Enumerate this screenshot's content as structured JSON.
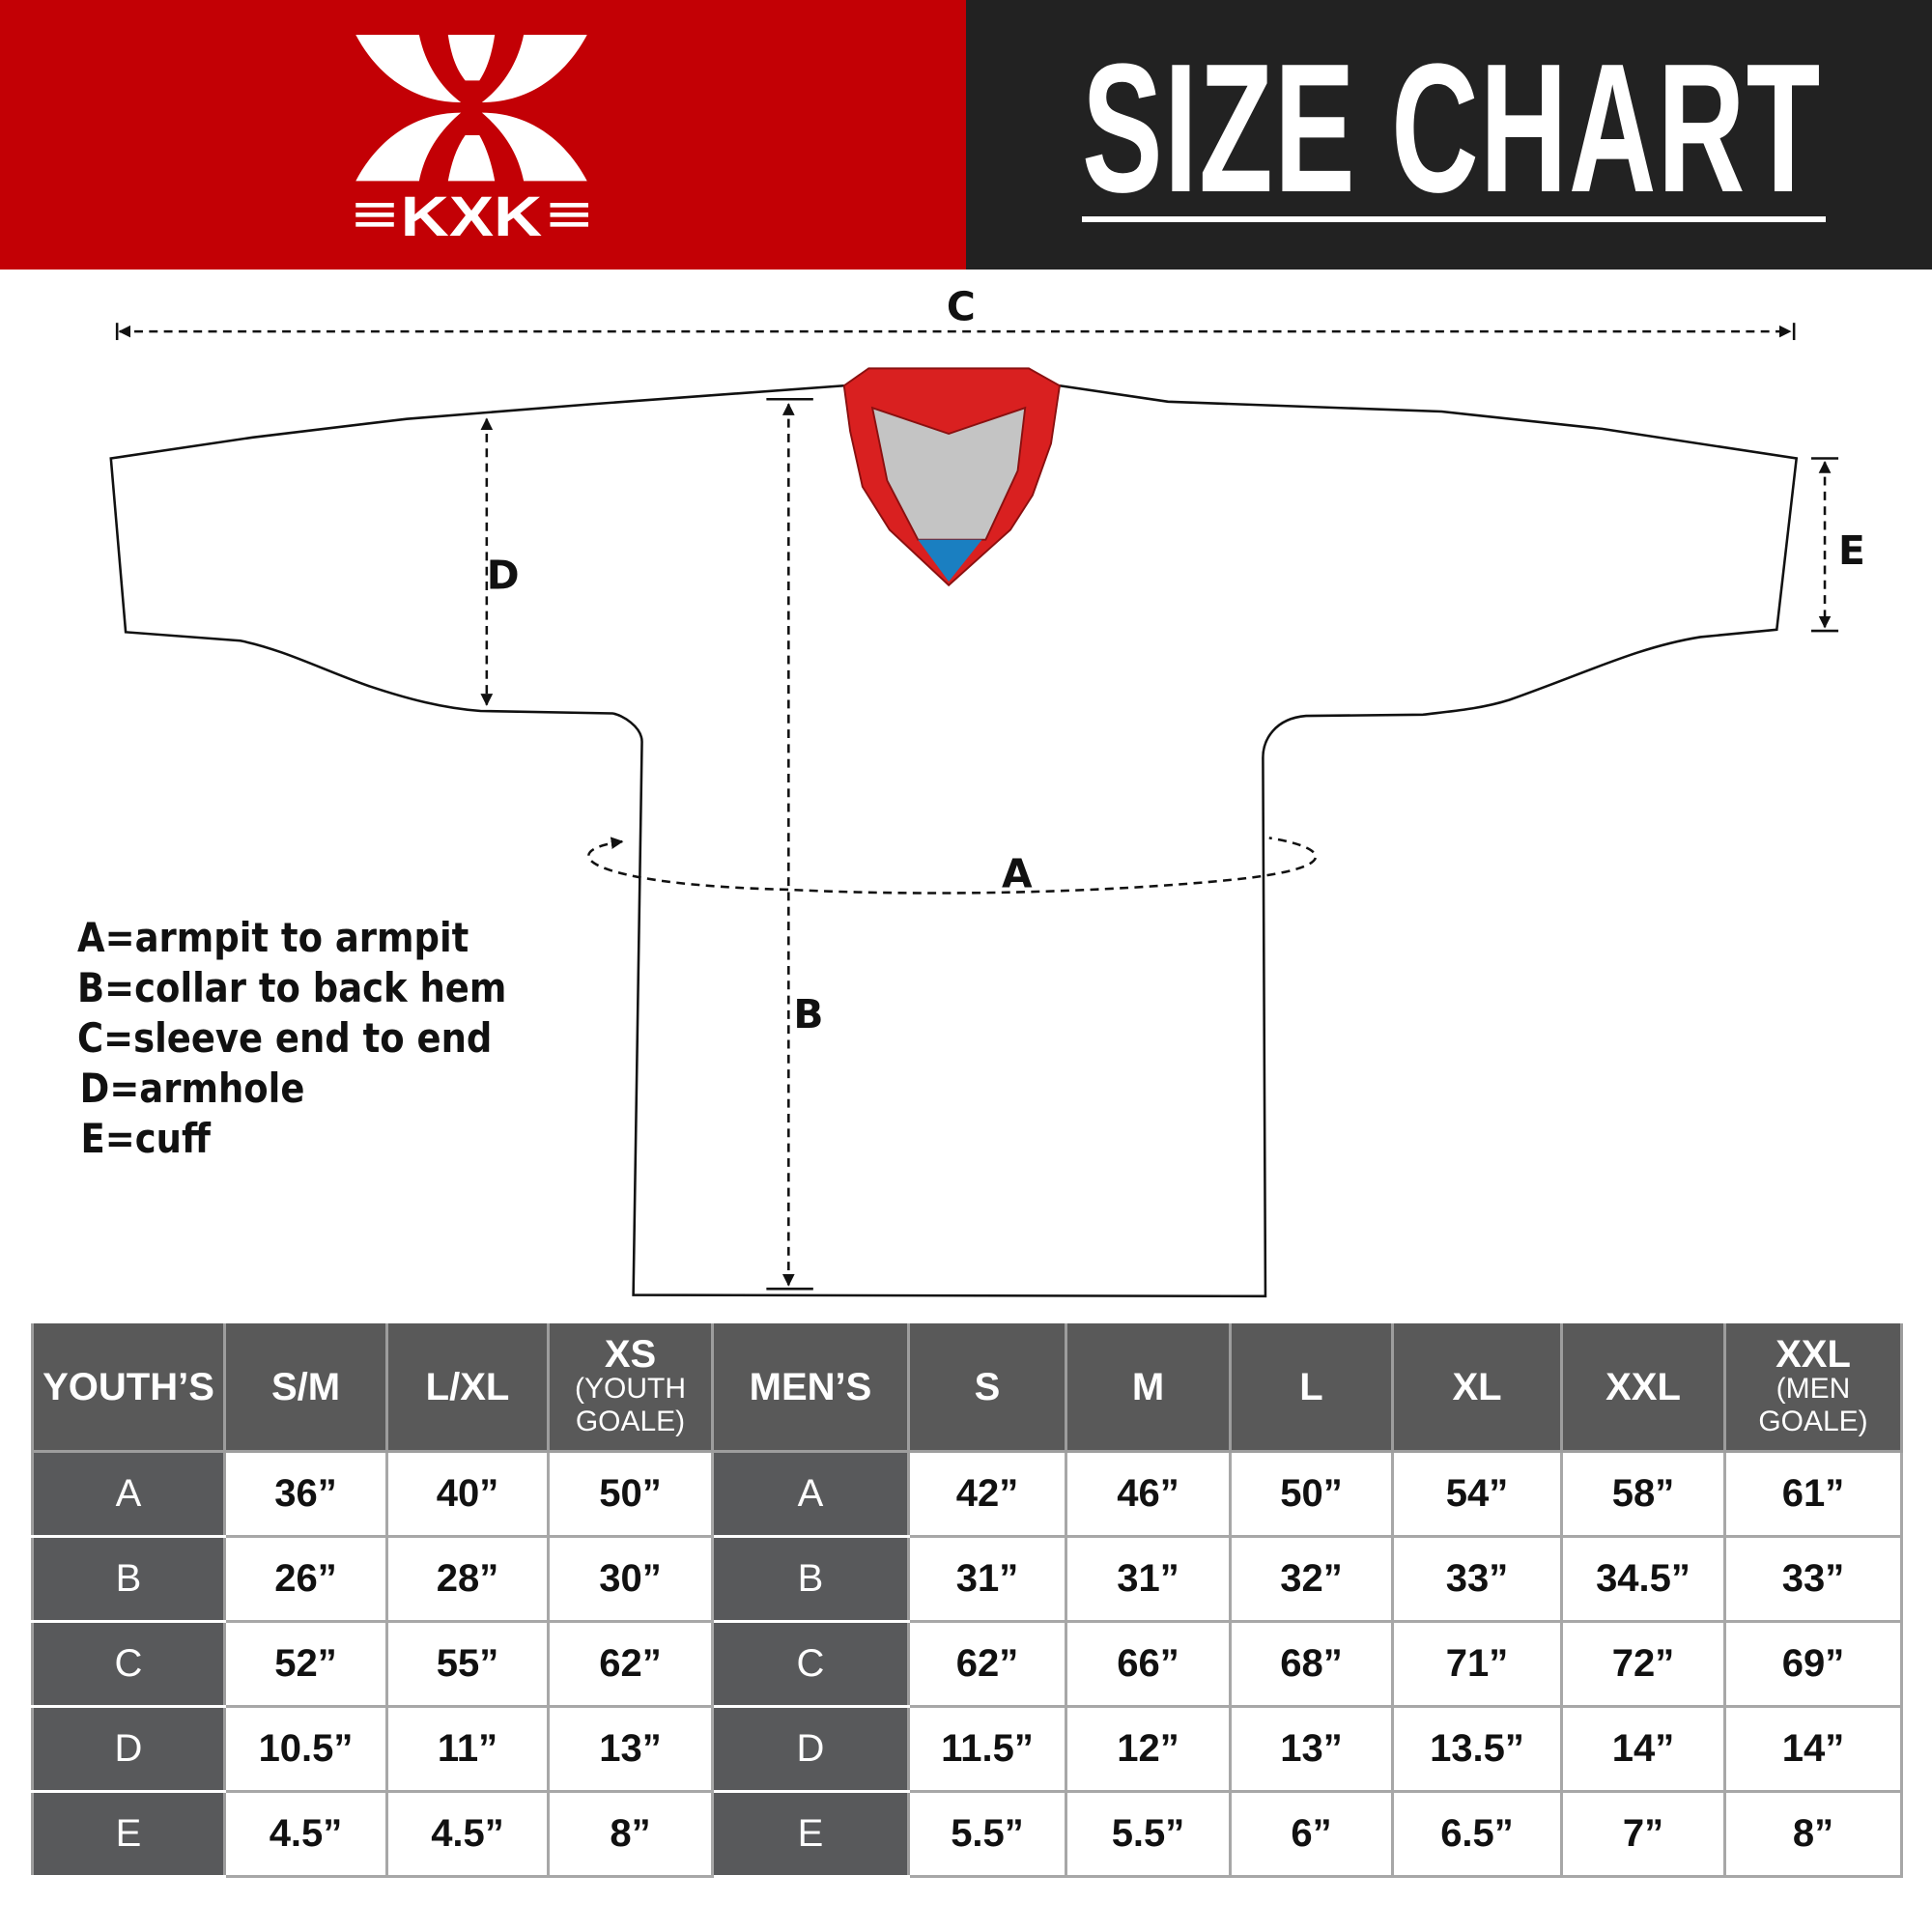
{
  "brand": {
    "logo_text": "KXK",
    "colors": {
      "red": "#c30005",
      "dark": "#222222",
      "table_header": "#595959",
      "collar_red": "#d92020",
      "collar_gray": "#c4c4c4",
      "collar_blue": "#1a7fc1"
    }
  },
  "header": {
    "title": "SIZE CHART"
  },
  "diagram": {
    "labels": {
      "a": "A",
      "b": "B",
      "c": "C",
      "d": "D",
      "e": "E"
    },
    "legend": [
      "A=armpit to armpit",
      "B=collar to back hem",
      "C=sleeve end to end",
      "D=armhole",
      "E=cuff"
    ]
  },
  "table": {
    "columns": [
      {
        "label": "YOUTH’S"
      },
      {
        "label": "S/M"
      },
      {
        "label": "L/XL"
      },
      {
        "label": "XS",
        "sub": "(YOUTH GOALE)"
      },
      {
        "label": "MEN’S"
      },
      {
        "label": "S"
      },
      {
        "label": "M"
      },
      {
        "label": "L"
      },
      {
        "label": "XL"
      },
      {
        "label": "XXL"
      },
      {
        "label": "XXL",
        "sub": "(MEN GOALE)"
      }
    ],
    "rows": [
      {
        "youth_label": "A",
        "youth": [
          "36”",
          "40”",
          "50”"
        ],
        "men_label": "A",
        "men": [
          "42”",
          "46”",
          "50”",
          "54”",
          "58”",
          "61”"
        ]
      },
      {
        "youth_label": "B",
        "youth": [
          "26”",
          "28”",
          "30”"
        ],
        "men_label": "B",
        "men": [
          "31”",
          "31”",
          "32”",
          "33”",
          "34.5”",
          "33”"
        ]
      },
      {
        "youth_label": "C",
        "youth": [
          "52”",
          "55”",
          "62”"
        ],
        "men_label": "C",
        "men": [
          "62”",
          "66”",
          "68”",
          "71”",
          "72”",
          "69”"
        ]
      },
      {
        "youth_label": "D",
        "youth": [
          "10.5”",
          "11”",
          "13”"
        ],
        "men_label": "D",
        "men": [
          "11.5”",
          "12”",
          "13”",
          "13.5”",
          "14”",
          "14”"
        ]
      },
      {
        "youth_label": "E",
        "youth": [
          "4.5”",
          "4.5”",
          "8”"
        ],
        "men_label": "E",
        "men": [
          "5.5”",
          "5.5”",
          "6”",
          "6.5”",
          "7”",
          "8”"
        ]
      }
    ]
  }
}
